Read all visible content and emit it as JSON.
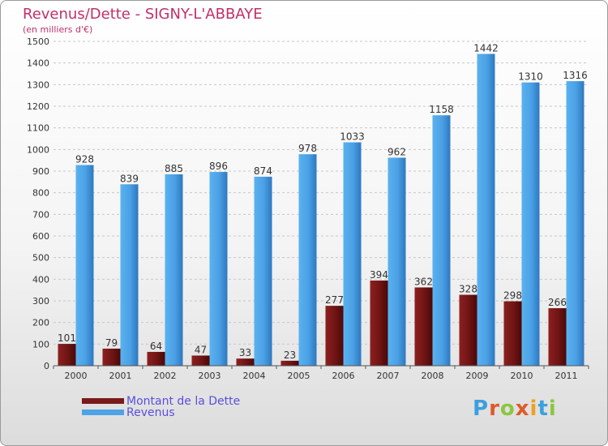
{
  "title": "Revenus/Dette - SIGNY-L'ABBAYE",
  "subtitle": "(en milliers d'€)",
  "logo": {
    "text": "Proxiti",
    "colors": [
      "#3aa0e0",
      "#e05a2a",
      "#8cc63f",
      "#e05a2a",
      "#f0a020",
      "#3aa0e0",
      "#8cc63f"
    ]
  },
  "colors": {
    "dette": "#7a1a1a",
    "revenus": "#4da3e6",
    "title": "#c0306a",
    "legend_text": "#5a4fe0"
  },
  "chart_data": {
    "type": "bar",
    "categories": [
      "2000",
      "2001",
      "2002",
      "2003",
      "2004",
      "2005",
      "2006",
      "2007",
      "2008",
      "2009",
      "2010",
      "2011"
    ],
    "series": [
      {
        "name": "Montant de la Dette",
        "values": [
          101,
          79,
          64,
          47,
          33,
          23,
          277,
          394,
          362,
          328,
          298,
          266
        ]
      },
      {
        "name": "Revenus",
        "values": [
          928,
          839,
          885,
          896,
          874,
          978,
          1033,
          962,
          1158,
          1442,
          1310,
          1316
        ]
      }
    ],
    "ylim": [
      0,
      1500
    ],
    "yticks": [
      0,
      100,
      200,
      300,
      400,
      500,
      600,
      700,
      800,
      900,
      1000,
      1100,
      1200,
      1300,
      1400,
      1500
    ],
    "grid": true
  }
}
